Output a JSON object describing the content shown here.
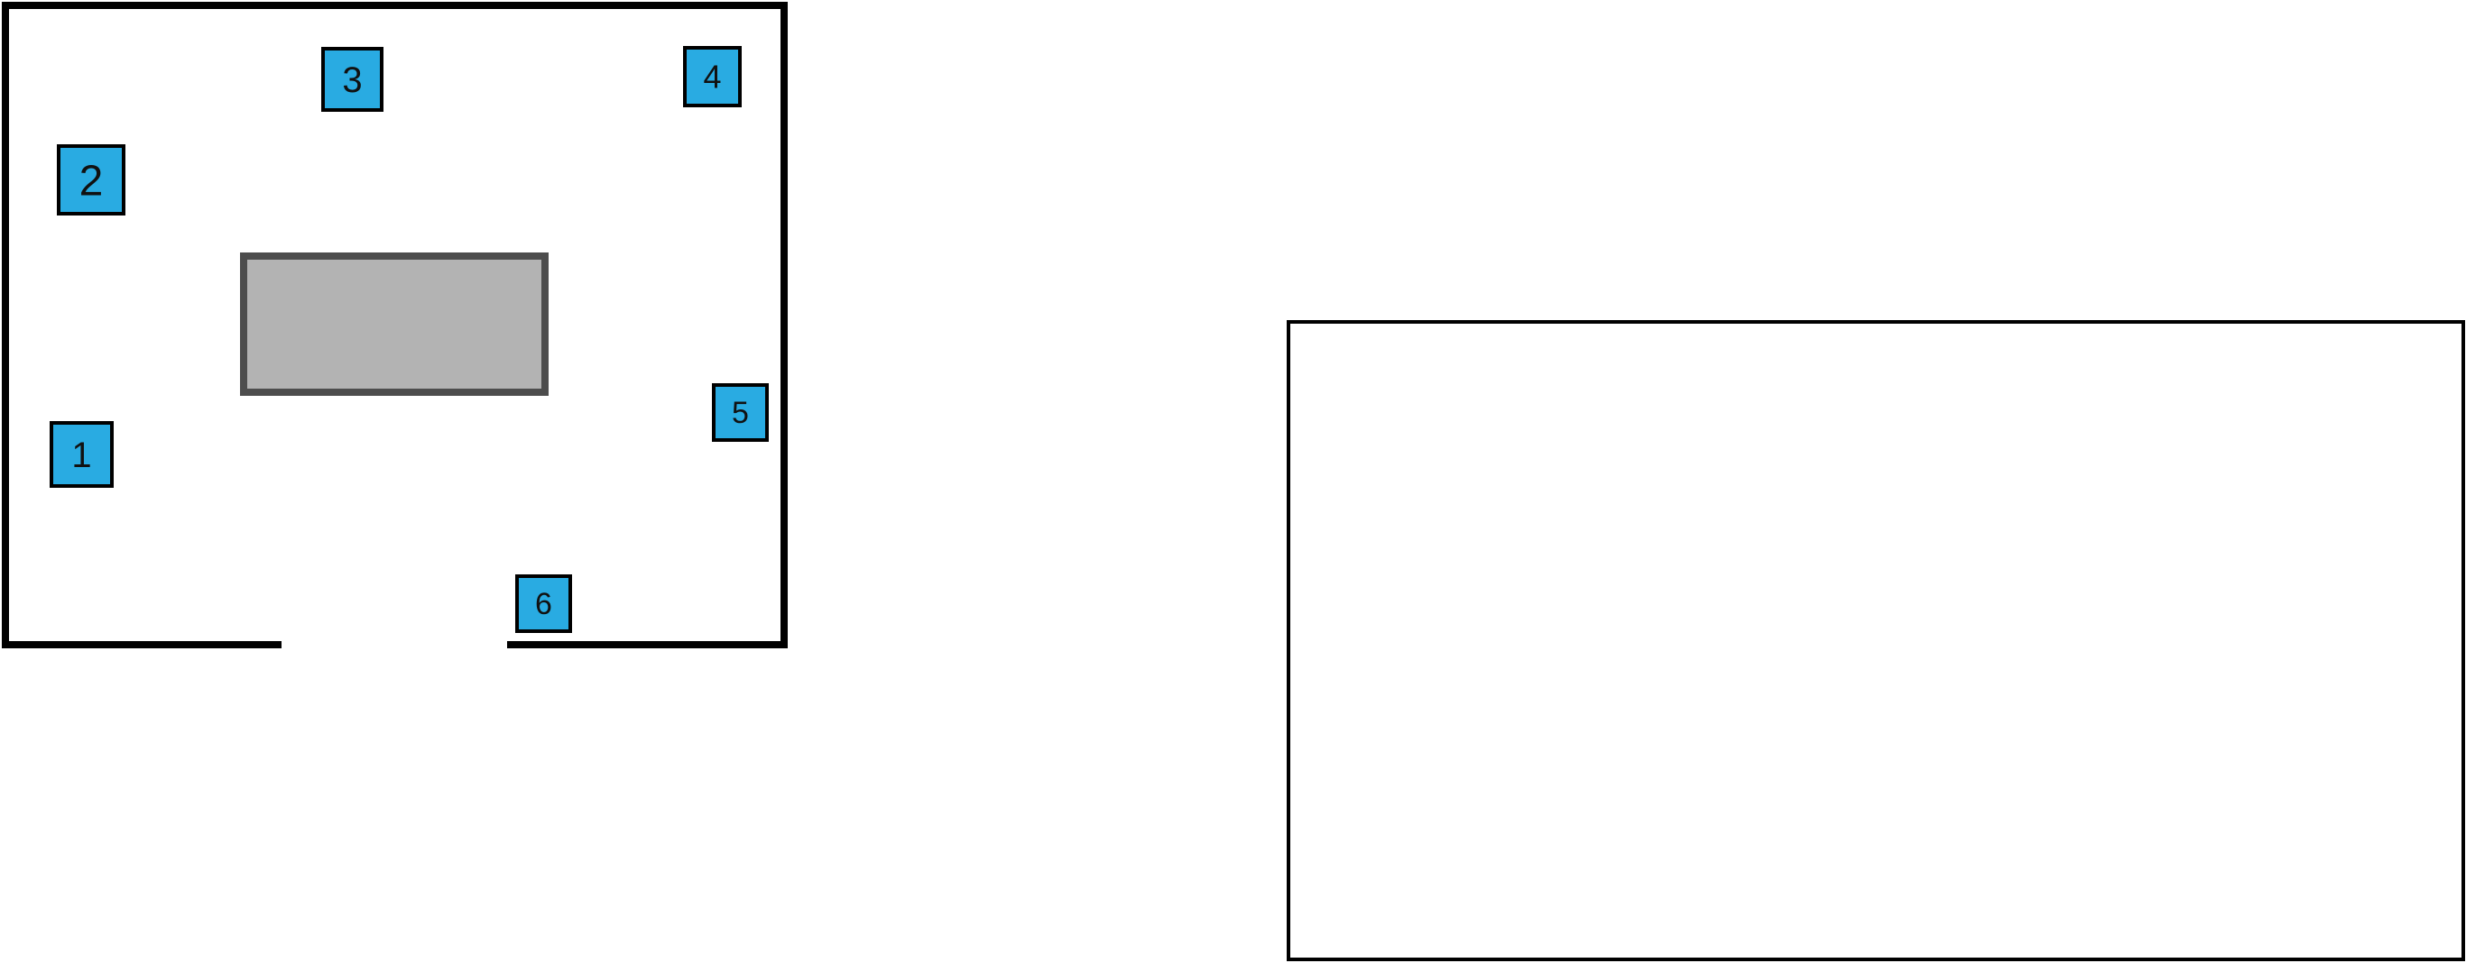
{
  "colors": {
    "wall": "#000000",
    "table_fill": "#b3b3b3",
    "table_border": "#4d4d4d",
    "marker_fill": "#29abe2",
    "marker_border": "#000000",
    "panel_border": "#000000"
  },
  "room": {
    "markers": [
      {
        "label": "1"
      },
      {
        "label": "2"
      },
      {
        "label": "3"
      },
      {
        "label": "4"
      },
      {
        "label": "5"
      },
      {
        "label": "6"
      }
    ]
  }
}
